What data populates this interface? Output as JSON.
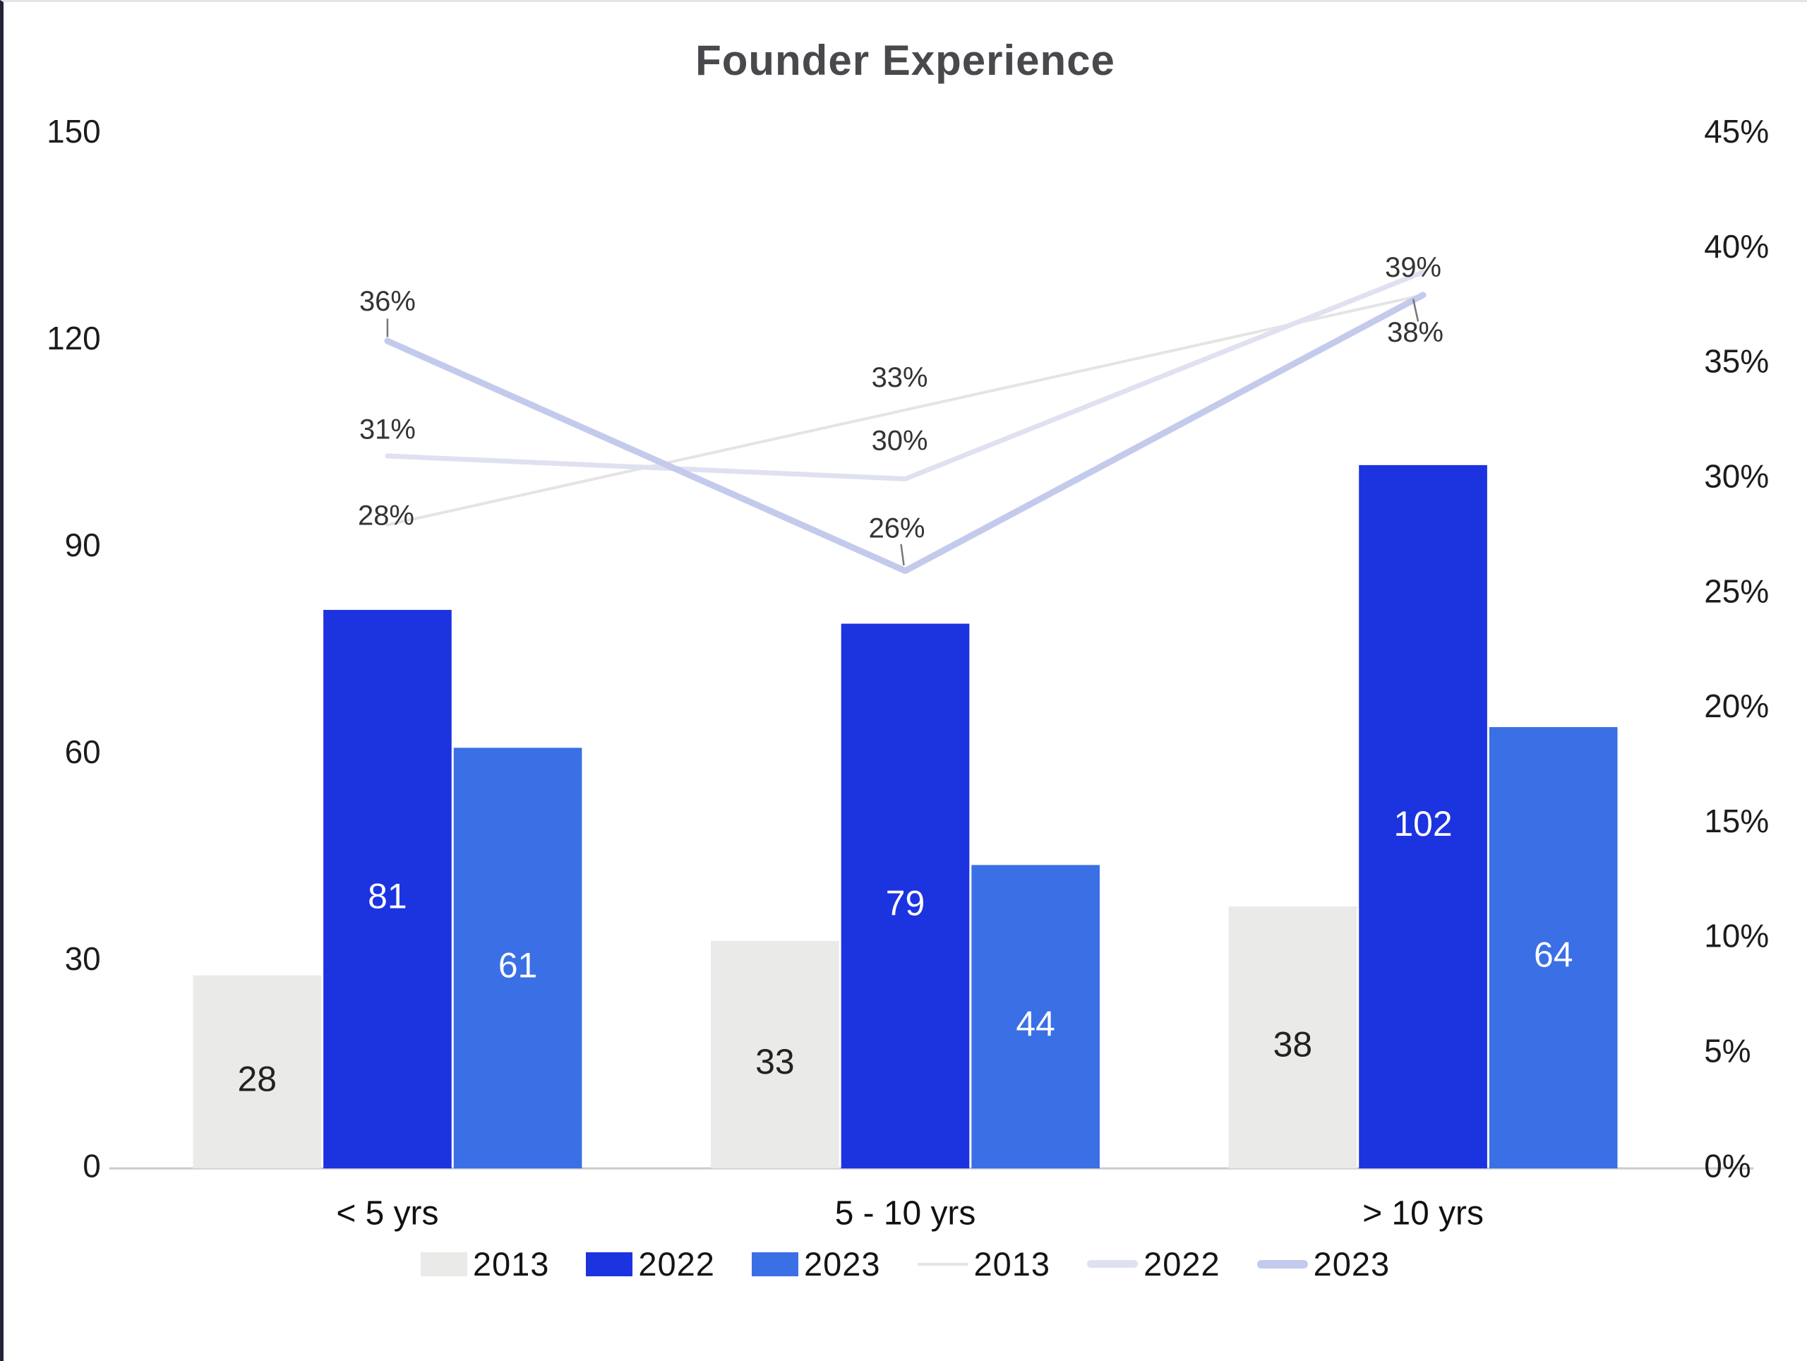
{
  "title": "Founder Experience",
  "colors": {
    "background": "#ffffff",
    "frame_border_left": "#23233a",
    "frame_border_top": "#e4e4e4",
    "title_text": "#47494c",
    "axis_text": "#1c1c1c",
    "category_text": "#111111",
    "baseline": "#cbcbcb",
    "pct_label_text": "#333333",
    "leader_tick": "#777777",
    "bar_2013": "#eaeae8",
    "bar_2022": "#1c33e0",
    "bar_2023": "#3a6fe5",
    "line_2013": "#e4e4e4",
    "line_2022": "#dfe1f1",
    "line_2023": "#c4caec"
  },
  "chart_data": {
    "type": "bar",
    "subtype": "grouped-bars-with-percentage-lines",
    "title": "Founder Experience",
    "categories": [
      "< 5 yrs",
      "5 - 10 yrs",
      "> 10 yrs"
    ],
    "bar_series": [
      {
        "name": "2013",
        "values": [
          28,
          33,
          38
        ],
        "color": "#eaeae8",
        "label_color": "#222222"
      },
      {
        "name": "2022",
        "values": [
          81,
          79,
          102
        ],
        "color": "#1c33e0",
        "label_color": "#ffffff"
      },
      {
        "name": "2023",
        "values": [
          61,
          44,
          64
        ],
        "color": "#3a6fe5",
        "label_color": "#ffffff"
      }
    ],
    "line_series": [
      {
        "name": "2013",
        "values_pct": [
          28,
          33,
          38
        ],
        "point_labels": [
          "28%",
          "33%",
          null
        ],
        "color": "#e4e4e4",
        "stroke_width": 4
      },
      {
        "name": "2022",
        "values_pct": [
          31,
          30,
          39
        ],
        "point_labels": [
          "31%",
          "30%",
          "39%"
        ],
        "color": "#dfe1f1",
        "stroke_width": 7
      },
      {
        "name": "2023",
        "values_pct": [
          36,
          26,
          38
        ],
        "point_labels": [
          "36%",
          "26%",
          "38%"
        ],
        "color": "#c4caec",
        "stroke_width": 9
      }
    ],
    "left_axis": {
      "min": 0,
      "max": 150,
      "ticks": [
        "150",
        "120",
        "90",
        "60",
        "30",
        "0"
      ]
    },
    "right_axis": {
      "min_pct": 0,
      "max_pct": 45,
      "ticks": [
        "45%",
        "40%",
        "35%",
        "30%",
        "25%",
        "20%",
        "15%",
        "10%",
        "5%",
        "0%"
      ]
    },
    "grid": "off",
    "legend_position": "bottom",
    "legend": {
      "bar_items": [
        {
          "label": "2013",
          "color": "#eaeae8"
        },
        {
          "label": "2022",
          "color": "#1c33e0"
        },
        {
          "label": "2023",
          "color": "#3a6fe5"
        }
      ],
      "line_items": [
        {
          "label": "2013",
          "color": "#e4e4e4",
          "thickness": 4
        },
        {
          "label": "2022",
          "color": "#dfe1f1",
          "thickness": 11
        },
        {
          "label": "2023",
          "color": "#c4caec",
          "thickness": 12
        }
      ]
    }
  }
}
